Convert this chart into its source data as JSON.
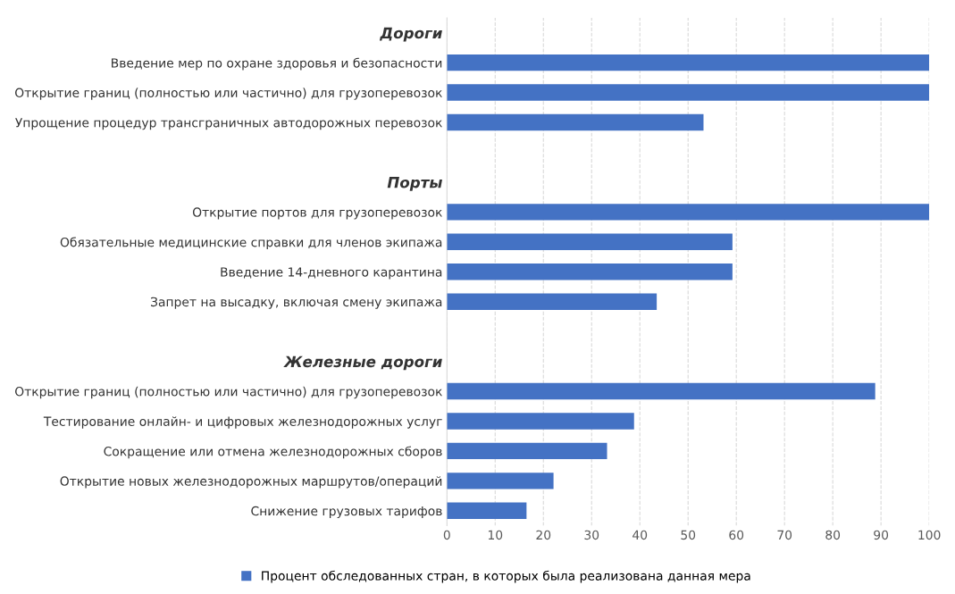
{
  "chart_data": {
    "type": "bar",
    "orientation": "horizontal",
    "categories": [
      "Дороги",
      "Введение мер по охране здоровья и безопасности",
      "Открытие границ (полностью или частично) для грузоперевозок",
      "Упрощение процедур трансграничных автодорожных перевозок",
      null,
      "Порты",
      "Открытие портов для грузоперевозок",
      "Обязательные медицинские справки для членов экипажа",
      "Введение 14-дневного карантина",
      "Запрет на высадку, включая смену экипажа",
      null,
      "Железные дороги",
      "Открытие границ (полностью или частично) для грузоперевозок",
      "Тестирование онлайн- и цифровых железнодорожных услуг",
      "Сокращение или отмена железнодорожных сборов",
      "Открытие новых железнодорожных маршрутов/операций",
      "Снижение грузовых тарифов"
    ],
    "series": [
      {
        "name": "Процент обследованных стран, в которых была реализована данная мера",
        "color": "#4472c4",
        "values": [
          null,
          100,
          100,
          53.2,
          null,
          null,
          100,
          59.2,
          59.2,
          43.5,
          null,
          null,
          88.8,
          38.8,
          33.2,
          22.1,
          16.5
        ]
      }
    ],
    "xlim": [
      0,
      100
    ],
    "xticks": [
      0,
      10,
      20,
      30,
      40,
      50,
      60,
      70,
      80,
      90,
      100
    ],
    "grid": "x",
    "legend": "bottom"
  }
}
